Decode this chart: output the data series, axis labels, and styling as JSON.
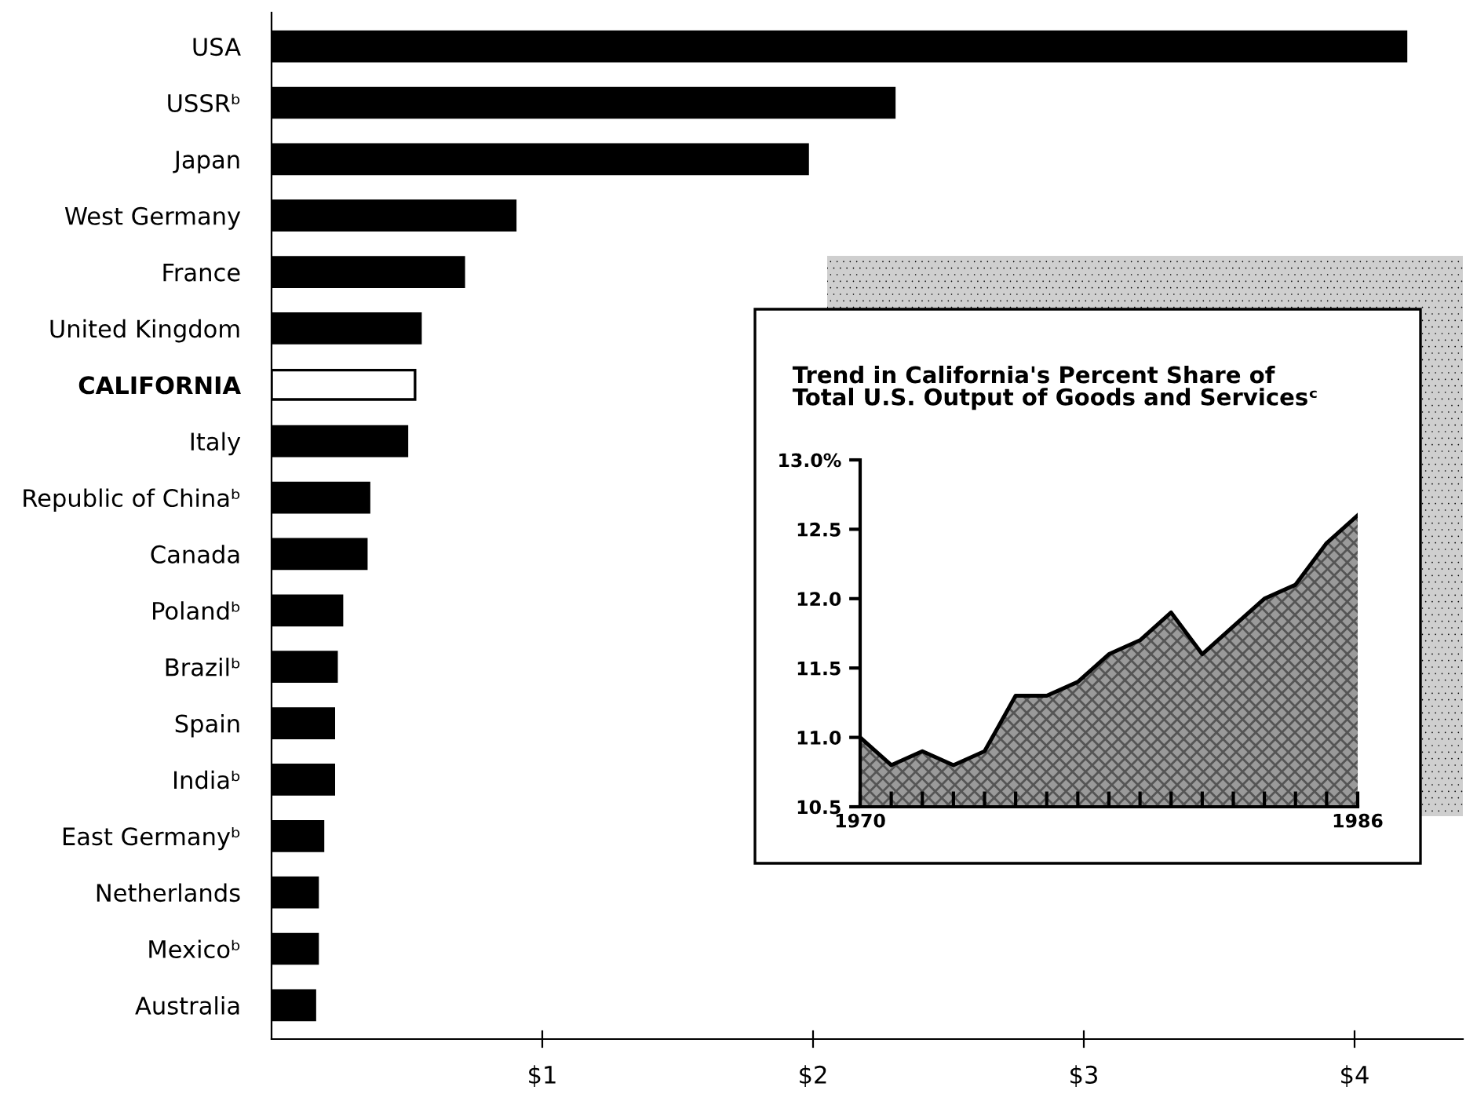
{
  "chart_data": [
    {
      "type": "bar",
      "orientation": "horizontal",
      "categories": [
        "USA",
        "USSRᵇ",
        "Japan",
        "West Germany",
        "France",
        "United Kingdom",
        "CALIFORNIA",
        "Italy",
        "Republic of Chinaᵇ",
        "Canada",
        "Polandᵇ",
        "Brazilᵇ",
        "Spain",
        "Indiaᵇ",
        "East Germanyᵇ",
        "Netherlands",
        "Mexicoᵇ",
        "Australia"
      ],
      "values": [
        4.19,
        2.3,
        1.98,
        0.9,
        0.71,
        0.55,
        0.53,
        0.5,
        0.36,
        0.35,
        0.26,
        0.24,
        0.23,
        0.23,
        0.19,
        0.17,
        0.17,
        0.16
      ],
      "colors": [
        "#000000",
        "#000000",
        "#000000",
        "#000000",
        "#000000",
        "#000000",
        "#ffffff",
        "#000000",
        "#000000",
        "#000000",
        "#000000",
        "#000000",
        "#000000",
        "#000000",
        "#000000",
        "#000000",
        "#000000",
        "#000000"
      ],
      "xlim": [
        0,
        4.4
      ],
      "xticks": [
        {
          "value": 1,
          "label": "$1"
        },
        {
          "value": 2,
          "label": "$2"
        },
        {
          "value": 3,
          "label": "$3"
        },
        {
          "value": 4,
          "label": "$4"
        }
      ],
      "grid": false
    },
    {
      "type": "area",
      "title": "Trend in California's Percent Share of\nTotal U.S. Output of Goods and Servicesᶜ",
      "x": [
        1970,
        1971,
        1972,
        1973,
        1974,
        1975,
        1976,
        1977,
        1978,
        1979,
        1980,
        1981,
        1982,
        1983,
        1984,
        1985,
        1986
      ],
      "values": [
        11.0,
        10.8,
        10.9,
        10.8,
        10.9,
        11.3,
        11.3,
        11.4,
        11.6,
        11.7,
        11.9,
        11.6,
        11.8,
        12.0,
        12.1,
        12.4,
        12.6
      ],
      "color": "#9a9a9a",
      "xlim": [
        1970,
        1986
      ],
      "ylim": [
        10.5,
        13.0
      ],
      "xticks": [
        1970,
        {
          "value": 1971,
          "label": null
        },
        {
          "value": 1972,
          "label": null
        },
        {
          "value": 1973,
          "label": null
        },
        {
          "value": 1974,
          "label": null
        },
        {
          "value": 1975,
          "label": null
        },
        {
          "value": 1976,
          "label": null
        },
        {
          "value": 1977,
          "label": null
        },
        {
          "value": 1978,
          "label": null
        },
        {
          "value": 1979,
          "label": null
        },
        {
          "value": 1980,
          "label": null
        },
        {
          "value": 1981,
          "label": null
        },
        {
          "value": 1982,
          "label": null
        },
        {
          "value": 1983,
          "label": null
        },
        {
          "value": 1984,
          "label": null
        },
        {
          "value": 1985,
          "label": null
        },
        1986
      ],
      "yticks": [
        10.5,
        {
          "value": 11,
          "label": "11.0"
        },
        11.5,
        {
          "value": 12,
          "label": "12.0"
        },
        12.5,
        {
          "value": 13,
          "label": "13.0%"
        }
      ],
      "grid": false
    }
  ]
}
